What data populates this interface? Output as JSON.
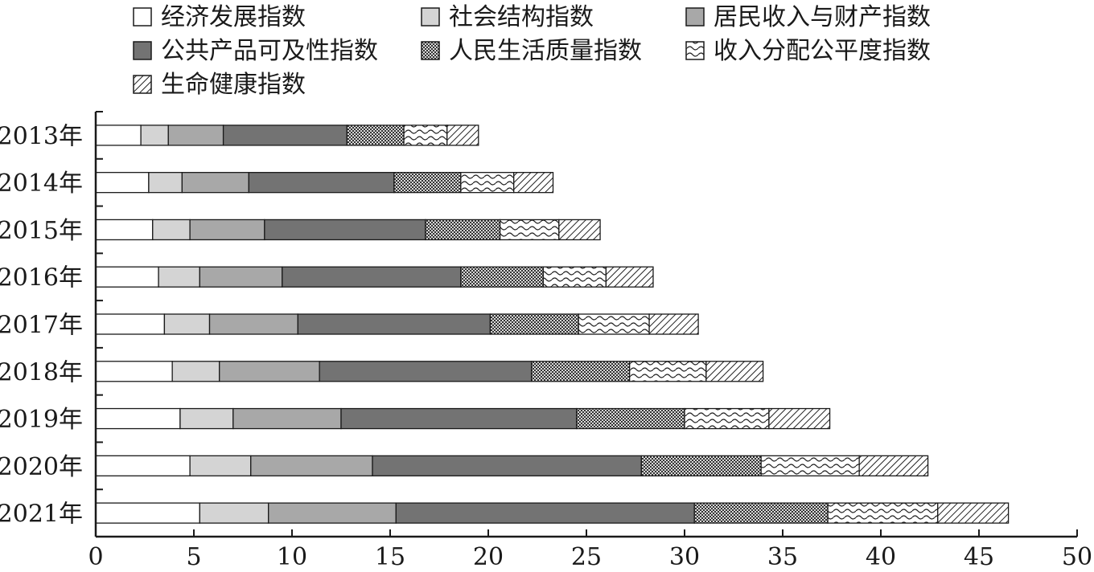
{
  "chart_data": {
    "type": "bar",
    "orientation": "horizontal",
    "stacked": true,
    "categories": [
      "2013年",
      "2014年",
      "2015年",
      "2016年",
      "2017年",
      "2018年",
      "2019年",
      "2020年",
      "2021年"
    ],
    "series": [
      {
        "name": "经济发展指数",
        "fill": "white",
        "values": [
          2.3,
          2.7,
          2.9,
          3.2,
          3.5,
          3.9,
          4.3,
          4.8,
          5.3
        ]
      },
      {
        "name": "社会结构指数",
        "fill": "light",
        "values": [
          1.4,
          1.7,
          1.9,
          2.1,
          2.3,
          2.4,
          2.7,
          3.1,
          3.5
        ]
      },
      {
        "name": "居民收入与财产指数",
        "fill": "medium",
        "values": [
          2.8,
          3.4,
          3.8,
          4.2,
          4.5,
          5.1,
          5.5,
          6.2,
          6.5
        ]
      },
      {
        "name": "公共产品可及性指数",
        "fill": "dark",
        "values": [
          6.3,
          7.4,
          8.2,
          9.1,
          9.8,
          10.8,
          12.0,
          13.7,
          15.2
        ]
      },
      {
        "name": "人民生活质量指数",
        "fill": "checker",
        "values": [
          2.9,
          3.4,
          3.8,
          4.2,
          4.5,
          5.0,
          5.5,
          6.1,
          6.8
        ]
      },
      {
        "name": "收入分配公平度指数",
        "fill": "wave",
        "values": [
          2.2,
          2.7,
          3.0,
          3.2,
          3.6,
          3.9,
          4.3,
          5.0,
          5.6
        ]
      },
      {
        "name": "生命健康指数",
        "fill": "hatch",
        "values": [
          1.6,
          2.0,
          2.1,
          2.4,
          2.5,
          2.9,
          3.1,
          3.5,
          3.6
        ]
      }
    ],
    "xlim": [
      0,
      50
    ],
    "xticks": [
      0,
      5,
      10,
      15,
      20,
      25,
      30,
      35,
      40,
      45,
      50
    ],
    "title": "",
    "xlabel": "",
    "ylabel": "",
    "grid": false,
    "legend_position": "top"
  }
}
